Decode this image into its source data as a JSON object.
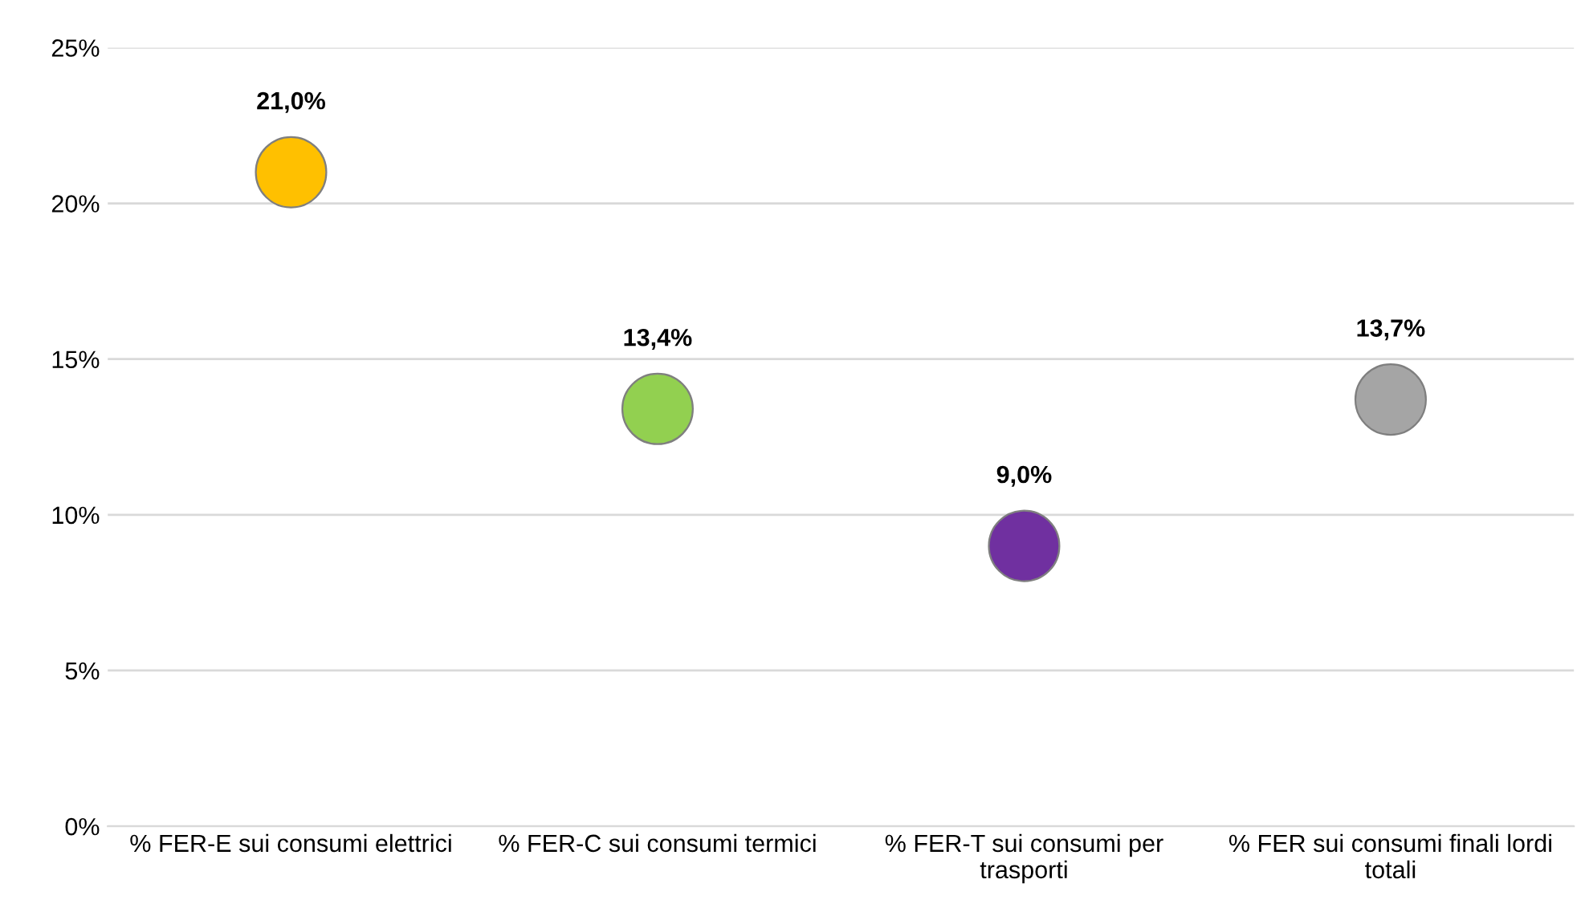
{
  "chart_data": {
    "type": "scatter",
    "categories": [
      "% FER-E sui consumi elettrici",
      "% FER-C sui consumi termici",
      "% FER-T sui consumi per trasporti",
      "% FER sui consumi finali lordi totali"
    ],
    "values": [
      21.0,
      13.4,
      9.0,
      13.7
    ],
    "colors": [
      "#ffc000",
      "#92d050",
      "#7030a0",
      "#a5a5a5"
    ],
    "value_labels": [
      "21,0%",
      "13,4%",
      "9,0%",
      "13,7%"
    ],
    "ylim": [
      0,
      25
    ],
    "yticks": [
      {
        "value": 0,
        "label": "0%"
      },
      {
        "value": 5,
        "label": "5%"
      },
      {
        "value": 10,
        "label": "10%"
      },
      {
        "value": 15,
        "label": "15%"
      },
      {
        "value": 20,
        "label": "20%"
      },
      {
        "value": 25,
        "label": "25%"
      }
    ],
    "grid": "y",
    "marker": "circle",
    "legend": false
  }
}
